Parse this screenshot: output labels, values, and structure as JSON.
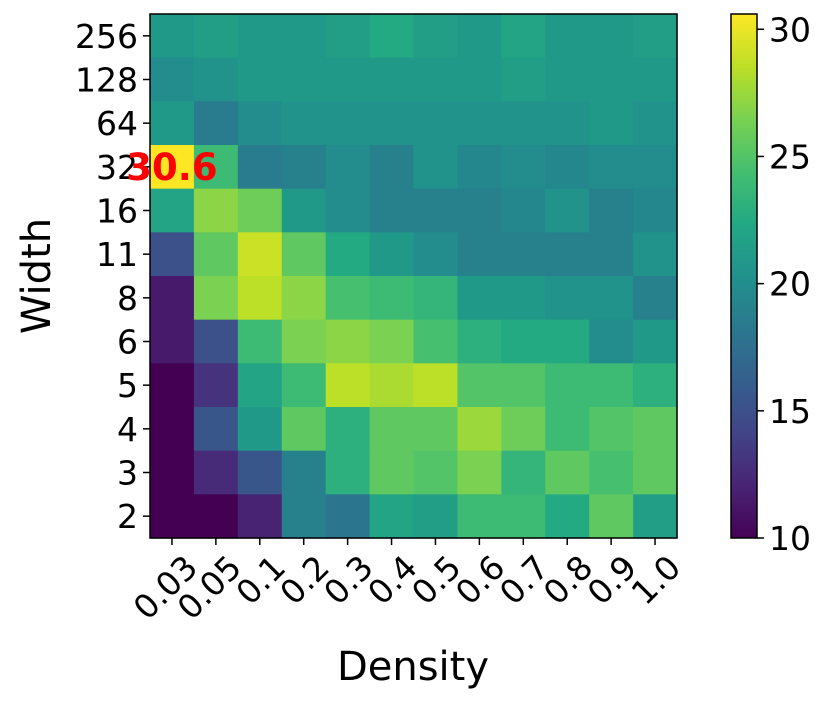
{
  "chart_data": {
    "type": "heatmap",
    "title": "",
    "xlabel": "Density",
    "ylabel": "Width",
    "x_categories": [
      "0.03",
      "0.05",
      "0.1",
      "0.2",
      "0.3",
      "0.4",
      "0.5",
      "0.6",
      "0.7",
      "0.8",
      "0.9",
      "1.0"
    ],
    "y_categories": [
      "256",
      "128",
      "64",
      "32",
      "16",
      "11",
      "8",
      "6",
      "5",
      "4",
      "3",
      "2"
    ],
    "values": [
      [
        21.0,
        21.5,
        21.0,
        21.0,
        21.5,
        22.5,
        21.5,
        21.0,
        22.0,
        21.0,
        21.0,
        21.5
      ],
      [
        20.0,
        20.5,
        21.0,
        21.0,
        21.0,
        21.0,
        21.0,
        21.0,
        21.5,
        21.0,
        21.0,
        21.0
      ],
      [
        21.0,
        18.5,
        20.0,
        20.5,
        20.5,
        20.5,
        20.5,
        20.5,
        20.5,
        20.5,
        21.0,
        20.5
      ],
      [
        30.6,
        24.0,
        18.5,
        19.0,
        20.0,
        19.0,
        20.5,
        19.5,
        20.0,
        19.5,
        20.0,
        20.0
      ],
      [
        22.0,
        27.0,
        26.0,
        21.0,
        20.0,
        19.0,
        19.0,
        19.0,
        19.5,
        20.5,
        19.0,
        19.5
      ],
      [
        15.0,
        25.5,
        29.0,
        25.5,
        22.5,
        21.0,
        20.0,
        19.0,
        19.0,
        19.0,
        19.0,
        20.5
      ],
      [
        11.5,
        26.5,
        28.5,
        27.0,
        24.5,
        24.0,
        23.5,
        21.0,
        21.0,
        20.5,
        20.5,
        19.0
      ],
      [
        11.5,
        15.0,
        24.0,
        26.5,
        27.0,
        26.5,
        24.5,
        23.0,
        22.5,
        22.5,
        20.0,
        21.0
      ],
      [
        10.0,
        13.0,
        22.0,
        24.0,
        28.5,
        28.0,
        28.5,
        25.0,
        25.0,
        24.0,
        24.0,
        23.0
      ],
      [
        10.0,
        15.5,
        21.0,
        25.5,
        23.0,
        25.5,
        25.5,
        27.5,
        26.0,
        24.0,
        25.0,
        25.5
      ],
      [
        10.0,
        12.5,
        15.5,
        19.0,
        23.0,
        25.5,
        25.0,
        26.5,
        23.5,
        25.5,
        24.5,
        25.5
      ],
      [
        10.0,
        10.0,
        12.0,
        19.0,
        18.0,
        22.0,
        21.5,
        24.0,
        24.0,
        22.5,
        25.5,
        21.5
      ]
    ],
    "colormap": "viridis",
    "vmin": 10,
    "vmax": 30.6,
    "colorbar_ticks": [
      10,
      15,
      20,
      25,
      30
    ],
    "annotations": [
      {
        "text": "30.6",
        "x": "0.03",
        "y": "32",
        "color": "#ff0000"
      }
    ],
    "grid": false
  }
}
